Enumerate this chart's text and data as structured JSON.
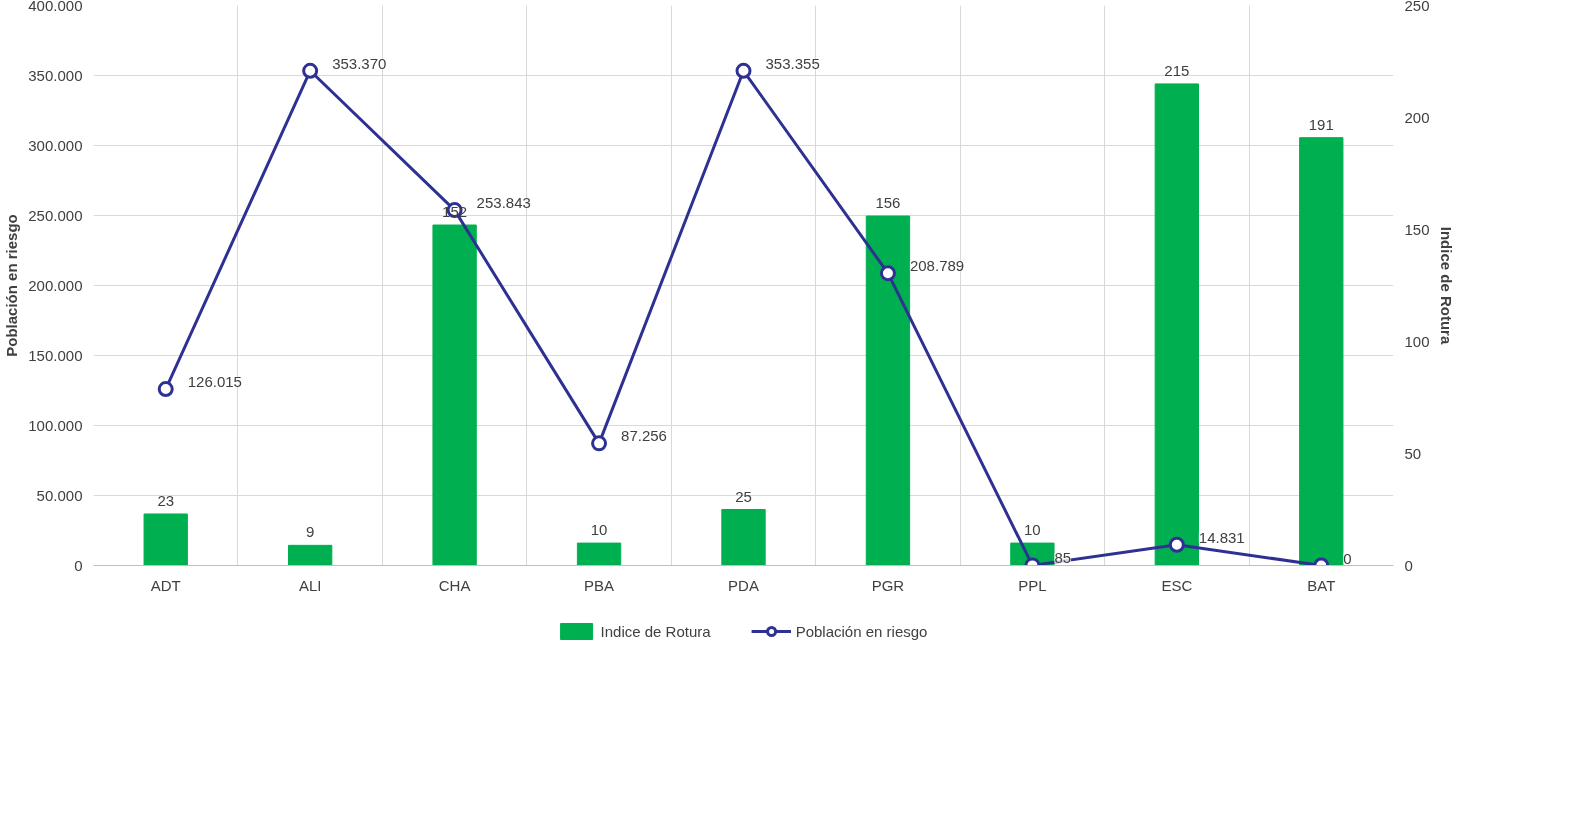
{
  "chart_data": {
    "type": "bar",
    "categories": [
      "ADT",
      "ALI",
      "CHA",
      "PBA",
      "PDA",
      "PGR",
      "PPL",
      "ESC",
      "BAT"
    ],
    "ylabel": "Población en riesgo",
    "y2label": "Indice de Rotura",
    "ylim": [
      0,
      400000
    ],
    "yticks": [
      {
        "value": 0,
        "label": "0"
      },
      {
        "value": 50000,
        "label": "50.000"
      },
      {
        "value": 100000,
        "label": "100.000"
      },
      {
        "value": 150000,
        "label": "150.000"
      },
      {
        "value": 200000,
        "label": "200.000"
      },
      {
        "value": 250000,
        "label": "250.000"
      },
      {
        "value": 300000,
        "label": "300.000"
      },
      {
        "value": 350000,
        "label": "350.000"
      },
      {
        "value": 400000,
        "label": "400.000"
      }
    ],
    "y2lim": [
      0,
      250
    ],
    "y2ticks": [
      0,
      50,
      100,
      150,
      200,
      250
    ],
    "series": [
      {
        "name": "Indice de Rotura",
        "type": "bar",
        "axis": "y2",
        "color": "#00b050",
        "values": [
          23,
          9,
          152,
          10,
          25,
          156,
          10,
          215,
          191
        ],
        "value_labels": [
          "23",
          "9",
          "152",
          "10",
          "25",
          "156",
          "10",
          "215",
          "191"
        ]
      },
      {
        "name": "Población en riesgo",
        "type": "line",
        "axis": "y",
        "color": "#2e3192",
        "marker": "circle",
        "values": [
          126015,
          353370,
          253843,
          87256,
          353355,
          208789,
          85,
          14831,
          0
        ],
        "value_labels": [
          "126.015",
          "353.370",
          "253.843",
          "87.256",
          "353.355",
          "208.789",
          "85",
          "14.831",
          "0"
        ]
      }
    ],
    "grid": true,
    "legend": "bottom"
  }
}
